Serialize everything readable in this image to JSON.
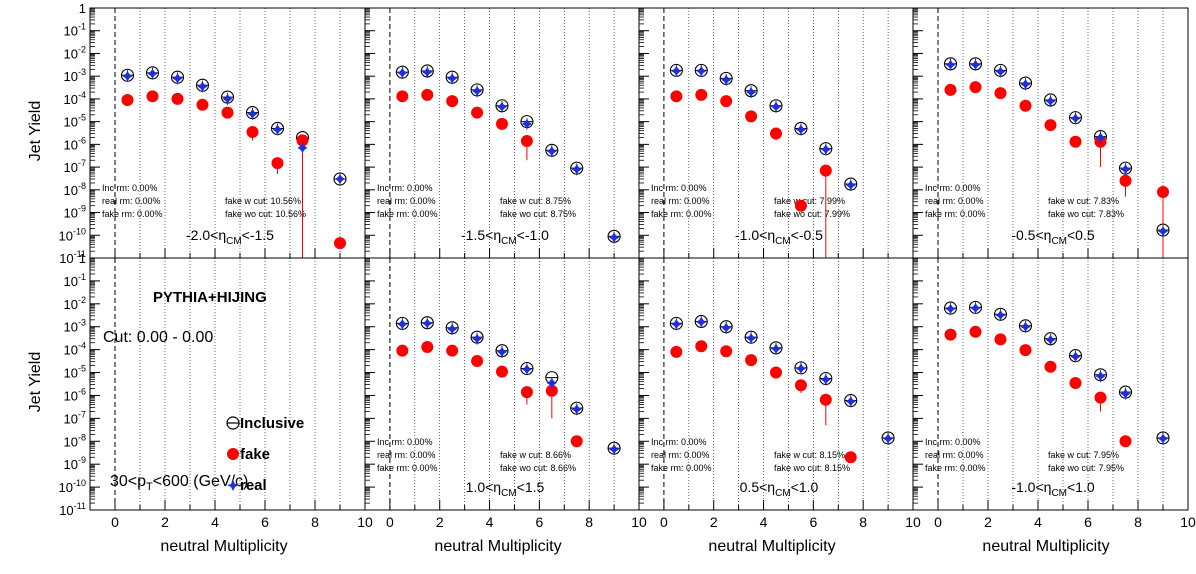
{
  "figure": {
    "y_axis_label": "Jet Yield",
    "x_axis_label": "neutral Multiplicity",
    "legend": {
      "inclusive": "Inclusive",
      "fake": "fake",
      "real": "real"
    },
    "generator_label": "PYTHIA+HIJING",
    "cut_label": "Cut: 0.00 - 0.00",
    "pt_label": {
      "pre": "30<p",
      "sub": "T",
      "post": "<600 (GeV/c)"
    },
    "colors": {
      "inclusive": "#000000",
      "fake": "#ff0000",
      "real": "#1f2fe0",
      "cut_line": "#000000"
    }
  },
  "chart_data": [
    {
      "type": "scatter",
      "title": "",
      "xlabel": "neutral Multiplicity",
      "ylabel": "Jet Yield",
      "log_y": true,
      "xlim": [
        -1,
        10
      ],
      "ylim": [
        1e-11,
        1
      ],
      "x_ticks": [
        "0",
        "2",
        "4",
        "6",
        "8",
        "10"
      ],
      "y_ticks": [
        "10^-11",
        "10^-10",
        "10^-9",
        "10^-8",
        "10^-7",
        "10^-6",
        "10^-5",
        "10^-4",
        "10^-3",
        "10^-2",
        "10^-1",
        "1"
      ],
      "eta_label": {
        "pre": "-2.0<η",
        "sub": "CM",
        "post": "<-1.5"
      },
      "stats_left": [
        "Inc rm: 0.00%",
        "real rm: 0.00%",
        "fake rm: 0.00%"
      ],
      "stats_right": [
        "fake w cut: 10.56%",
        "fake wo cut: 10.56%"
      ],
      "series": [
        {
          "name": "Inclusive",
          "x": [
            0.5,
            1.5,
            2.5,
            3.5,
            4.5,
            5.5,
            6.5,
            7.5,
            9.0
          ],
          "values": [
            0.0011,
            0.0014,
            0.0009,
            0.0004,
            0.00012,
            2.5e-05,
            5e-06,
            2e-06,
            3e-08
          ]
        },
        {
          "name": "fake",
          "x": [
            0.5,
            1.5,
            2.5,
            3.5,
            4.5,
            5.5,
            6.5,
            7.5,
            9.0
          ],
          "values": [
            9e-05,
            0.00013,
            0.0001,
            5.5e-05,
            2.5e-05,
            3.5e-06,
            1.5e-07,
            1.5e-06,
            4.5e-11
          ],
          "err_lo": [
            0,
            0,
            0,
            0,
            0,
            2e-06,
            1e-07,
            1.5e-06,
            0
          ]
        },
        {
          "name": "real",
          "x": [
            0.5,
            1.5,
            2.5,
            3.5,
            4.5,
            5.5,
            6.5,
            7.5,
            9.0
          ],
          "values": [
            0.001,
            0.0013,
            0.0008,
            0.00035,
            0.0001,
            2.2e-05,
            4.5e-06,
            7e-07,
            3e-08
          ]
        }
      ]
    },
    {
      "type": "scatter",
      "title": "",
      "xlabel": "neutral Multiplicity",
      "ylabel": "",
      "log_y": true,
      "xlim": [
        -1,
        10
      ],
      "ylim": [
        1e-11,
        1
      ],
      "eta_label": {
        "pre": "-1.5<η",
        "sub": "CM",
        "post": "<-1.0"
      },
      "stats_left": [
        "Inc rm: 0.00%",
        "real rm: 0.00%",
        "fake rm: 0.00%"
      ],
      "stats_right": [
        "fake w cut: 8.75%",
        "fake wo cut: 8.75%"
      ],
      "series": [
        {
          "name": "Inclusive",
          "x": [
            0.5,
            1.5,
            2.5,
            3.5,
            4.5,
            5.5,
            6.5,
            7.5,
            9.0
          ],
          "values": [
            0.0015,
            0.0017,
            0.0009,
            0.00025,
            5e-05,
            1e-05,
            5.5e-07,
            9e-08,
            9e-11
          ]
        },
        {
          "name": "fake",
          "x": [
            0.5,
            1.5,
            2.5,
            3.5,
            4.5,
            5.5,
            6.5,
            7.5,
            9.0
          ],
          "values": [
            0.00013,
            0.00015,
            8e-05,
            2.5e-05,
            8e-06,
            1.4e-06,
            null,
            null,
            null
          ],
          "err_lo": [
            0,
            0,
            0,
            0,
            0,
            1.2e-06,
            0,
            0,
            0
          ]
        },
        {
          "name": "real",
          "x": [
            0.5,
            1.5,
            2.5,
            3.5,
            4.5,
            5.5,
            6.5,
            7.5,
            9.0
          ],
          "values": [
            0.0014,
            0.0015,
            0.0008,
            0.00022,
            4.5e-05,
            8e-06,
            5e-07,
            8e-08,
            8e-11
          ]
        }
      ]
    },
    {
      "type": "scatter",
      "title": "",
      "xlabel": "neutral Multiplicity",
      "ylabel": "",
      "log_y": true,
      "xlim": [
        -1,
        10
      ],
      "ylim": [
        1e-11,
        1
      ],
      "eta_label": {
        "pre": "-1.0<η",
        "sub": "CM",
        "post": "<-0.5"
      },
      "stats_left": [
        "Inc rm: 0.00%",
        "real rm: 0.00%",
        "fake rm: 0.00%"
      ],
      "stats_right": [
        "fake w cut: 7.99%",
        "fake wo cut: 7.99%"
      ],
      "series": [
        {
          "name": "Inclusive",
          "x": [
            0.5,
            1.5,
            2.5,
            3.5,
            4.5,
            5.5,
            6.5,
            7.5,
            9.0
          ],
          "values": [
            0.0018,
            0.0018,
            0.0008,
            0.00023,
            5e-05,
            5e-06,
            6.5e-07,
            1.8e-08,
            null
          ]
        },
        {
          "name": "fake",
          "x": [
            0.5,
            1.5,
            2.5,
            3.5,
            4.5,
            5.5,
            6.5,
            7.5,
            9.0
          ],
          "values": [
            0.00013,
            0.00015,
            8e-05,
            1.7e-05,
            3e-06,
            2e-09,
            7e-08,
            null,
            null
          ],
          "err_lo": [
            0,
            0,
            0,
            0,
            1.5e-06,
            0,
            7e-08,
            0,
            0
          ]
        },
        {
          "name": "real",
          "x": [
            0.5,
            1.5,
            2.5,
            3.5,
            4.5,
            5.5,
            6.5,
            7.5,
            9.0
          ],
          "values": [
            0.0017,
            0.0017,
            0.0007,
            0.0002,
            4.5e-05,
            4.5e-06,
            6e-07,
            1.6e-08,
            null
          ]
        }
      ]
    },
    {
      "type": "scatter",
      "title": "",
      "xlabel": "neutral Multiplicity",
      "ylabel": "",
      "log_y": true,
      "xlim": [
        -1,
        10
      ],
      "ylim": [
        1e-11,
        1
      ],
      "eta_label": {
        "pre": "-0.5<η",
        "sub": "CM",
        "post": "<0.5"
      },
      "stats_left": [
        "Inc rm: 0.00%",
        "real rm: 0.00%",
        "fake rm: 0.00%"
      ],
      "stats_right": [
        "fake w cut: 7.83%",
        "fake wo cut: 7.83%"
      ],
      "series": [
        {
          "name": "Inclusive",
          "x": [
            0.5,
            1.5,
            2.5,
            3.5,
            4.5,
            5.5,
            6.5,
            7.5,
            9.0
          ],
          "values": [
            0.0035,
            0.0035,
            0.0018,
            0.0005,
            9e-05,
            1.5e-05,
            2.2e-06,
            9e-08,
            1.7e-10
          ]
        },
        {
          "name": "fake",
          "x": [
            0.5,
            1.5,
            2.5,
            3.5,
            4.5,
            5.5,
            6.5,
            7.5,
            9.0
          ],
          "values": [
            0.00025,
            0.00033,
            0.00018,
            5e-05,
            7e-06,
            1.3e-06,
            1.3e-06,
            2.5e-08,
            8e-09
          ],
          "err_lo": [
            0,
            0,
            0,
            0,
            0,
            0,
            1.2e-06,
            2e-08,
            8e-09
          ]
        },
        {
          "name": "real",
          "x": [
            0.5,
            1.5,
            2.5,
            3.5,
            4.5,
            5.5,
            6.5,
            7.5,
            9.0
          ],
          "values": [
            0.0032,
            0.0032,
            0.0016,
            0.00045,
            8e-05,
            1.4e-05,
            2e-06,
            8e-08,
            1.5e-10
          ]
        }
      ]
    },
    {
      "type": "scatter",
      "title": "",
      "xlabel": "neutral Multiplicity",
      "ylabel": "Jet Yield",
      "log_y": true,
      "xlim": [
        -1,
        10
      ],
      "ylim": [
        1e-11,
        1
      ],
      "eta_label": null,
      "stats_left": [],
      "stats_right": [],
      "series": []
    },
    {
      "type": "scatter",
      "title": "",
      "xlabel": "neutral Multiplicity",
      "ylabel": "",
      "log_y": true,
      "xlim": [
        -1,
        10
      ],
      "ylim": [
        1e-11,
        1
      ],
      "eta_label": {
        "pre": "1.0<η",
        "sub": "CM",
        "post": "<1.5"
      },
      "stats_left": [
        "Inc rm: 0.00%",
        "real rm: 0.00%",
        "fake rm: 0.00%"
      ],
      "stats_right": [
        "fake w cut: 8.66%",
        "fake wo cut: 8.66%"
      ],
      "series": [
        {
          "name": "Inclusive",
          "x": [
            0.5,
            1.5,
            2.5,
            3.5,
            4.5,
            5.5,
            6.5,
            7.5,
            9.0
          ],
          "values": [
            0.0014,
            0.0015,
            0.0009,
            0.00035,
            9e-05,
            1.5e-05,
            6e-06,
            2.8e-07,
            5e-09
          ]
        },
        {
          "name": "fake",
          "x": [
            0.5,
            1.5,
            2.5,
            3.5,
            4.5,
            5.5,
            6.5,
            7.5,
            9.0
          ],
          "values": [
            9e-05,
            0.00013,
            9e-05,
            3.2e-05,
            1.1e-05,
            1.4e-06,
            1.6e-06,
            1e-08,
            null
          ],
          "err_lo": [
            0,
            0,
            0,
            0,
            0,
            1e-06,
            1.5e-06,
            0,
            0
          ]
        },
        {
          "name": "real",
          "x": [
            0.5,
            1.5,
            2.5,
            3.5,
            4.5,
            5.5,
            6.5,
            7.5,
            9.0
          ],
          "values": [
            0.0013,
            0.0014,
            0.0008,
            0.0003,
            8e-05,
            1.4e-05,
            3.5e-06,
            2.5e-07,
            4.5e-09
          ]
        }
      ]
    },
    {
      "type": "scatter",
      "title": "",
      "xlabel": "neutral Multiplicity",
      "ylabel": "",
      "log_y": true,
      "xlim": [
        -1,
        10
      ],
      "ylim": [
        1e-11,
        1
      ],
      "eta_label": {
        "pre": "0.5<η",
        "sub": "CM",
        "post": "<1.0"
      },
      "stats_left": [
        "Inc rm: 0.00%",
        "real rm: 0.00%",
        "fake rm: 0.00%"
      ],
      "stats_right": [
        "fake w cut: 8.15%",
        "fake wo cut: 8.15%"
      ],
      "series": [
        {
          "name": "Inclusive",
          "x": [
            0.5,
            1.5,
            2.5,
            3.5,
            4.5,
            5.5,
            6.5,
            7.5,
            9.0
          ],
          "values": [
            0.0014,
            0.0017,
            0.001,
            0.00035,
            0.00012,
            1.6e-05,
            5.5e-06,
            6e-07,
            1.4e-08
          ]
        },
        {
          "name": "fake",
          "x": [
            0.5,
            1.5,
            2.5,
            3.5,
            4.5,
            5.5,
            6.5,
            7.5,
            9.0
          ],
          "values": [
            8e-05,
            0.00014,
            8.5e-05,
            3.5e-05,
            1e-05,
            2.8e-06,
            6.5e-07,
            2e-09,
            null
          ],
          "err_lo": [
            0,
            0,
            0,
            0,
            0,
            1.5e-06,
            6e-07,
            0,
            0
          ]
        },
        {
          "name": "real",
          "x": [
            0.5,
            1.5,
            2.5,
            3.5,
            4.5,
            5.5,
            6.5,
            7.5,
            9.0
          ],
          "values": [
            0.0013,
            0.0016,
            0.0009,
            0.00032,
            0.00011,
            1.5e-05,
            5e-06,
            5.5e-07,
            1.3e-08
          ]
        }
      ]
    },
    {
      "type": "scatter",
      "title": "",
      "xlabel": "neutral Multiplicity",
      "ylabel": "",
      "log_y": true,
      "xlim": [
        -1,
        10
      ],
      "ylim": [
        1e-11,
        1
      ],
      "eta_label": {
        "pre": "-1.0<η",
        "sub": "CM",
        "post": "<1.0"
      },
      "stats_left": [
        "Inc rm: 0.00%",
        "real rm: 0.00%",
        "fake rm: 0.00%"
      ],
      "stats_right": [
        "fake w cut: 7.95%",
        "fake wo cut: 7.95%"
      ],
      "series": [
        {
          "name": "Inclusive",
          "x": [
            0.5,
            1.5,
            2.5,
            3.5,
            4.5,
            5.5,
            6.5,
            7.5,
            9.0
          ],
          "values": [
            0.0065,
            0.007,
            0.0035,
            0.0011,
            0.0003,
            5.5e-05,
            8e-06,
            1.4e-06,
            1.4e-08
          ]
        },
        {
          "name": "fake",
          "x": [
            0.5,
            1.5,
            2.5,
            3.5,
            4.5,
            5.5,
            6.5,
            7.5,
            9.0
          ],
          "values": [
            0.00045,
            0.0006,
            0.00028,
            9.5e-05,
            1.8e-05,
            3.5e-06,
            8e-07,
            1e-08,
            null
          ],
          "err_lo": [
            0,
            0,
            0,
            0,
            0,
            0,
            6e-07,
            0,
            0
          ]
        },
        {
          "name": "real",
          "x": [
            0.5,
            1.5,
            2.5,
            3.5,
            4.5,
            5.5,
            6.5,
            7.5,
            9.0
          ],
          "values": [
            0.006,
            0.0065,
            0.0032,
            0.001,
            0.00027,
            5e-05,
            7e-06,
            1.2e-06,
            1.3e-08
          ]
        }
      ]
    }
  ]
}
